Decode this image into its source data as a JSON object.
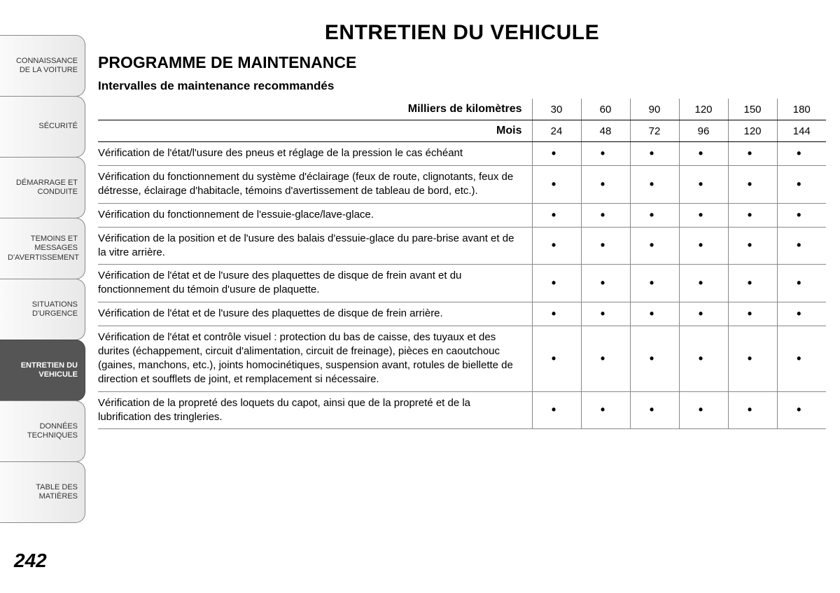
{
  "page_number": "242",
  "main_title": "ENTRETIEN DU VEHICULE",
  "sub_title": "PROGRAMME DE MAINTENANCE",
  "sub_sub_title": "Intervalles de maintenance recommandés",
  "sidebar": {
    "active_index": 5,
    "tabs": [
      "CONNAISSANCE DE LA VOITURE",
      "SÉCURITÉ",
      "DÉMARRAGE ET CONDUITE",
      "TEMOINS ET MESSAGES D'AVERTISSEMENT",
      "SITUATIONS D'URGENCE",
      "ENTRETIEN DU VEHICULE",
      "DONNÉES TECHNIQUES",
      "TABLE DES MATIÈRES"
    ]
  },
  "table": {
    "header_rows": [
      {
        "label": "Milliers de kilomètres",
        "values": [
          "30",
          "60",
          "90",
          "120",
          "150",
          "180"
        ]
      },
      {
        "label": "Mois",
        "values": [
          "24",
          "48",
          "72",
          "96",
          "120",
          "144"
        ]
      }
    ],
    "rows": [
      {
        "desc": "Vérification de l'état/l'usure des pneus et réglage de la pression le cas échéant",
        "marks": [
          true,
          true,
          true,
          true,
          true,
          true
        ]
      },
      {
        "desc": "Vérification du fonctionnement du système d'éclairage (feux de route, clignotants, feux de détresse, éclairage d'habitacle, témoins d'avertissement de tableau de bord, etc.).",
        "marks": [
          true,
          true,
          true,
          true,
          true,
          true
        ]
      },
      {
        "desc": "Vérification du fonctionnement de l'essuie-glace/lave-glace.",
        "marks": [
          true,
          true,
          true,
          true,
          true,
          true
        ]
      },
      {
        "desc": "Vérification de la position et de l'usure des balais d'essuie-glace du pare-brise avant et de la vitre arrière.",
        "marks": [
          true,
          true,
          true,
          true,
          true,
          true
        ]
      },
      {
        "desc": "Vérification de l'état et de l'usure des plaquettes de disque de frein avant et du fonctionnement du témoin d'usure de plaquette.",
        "marks": [
          true,
          true,
          true,
          true,
          true,
          true
        ]
      },
      {
        "desc": "Vérification de l'état et de l'usure des plaquettes de disque de frein arrière.",
        "marks": [
          true,
          true,
          true,
          true,
          true,
          true
        ]
      },
      {
        "desc": "Vérification de l'état et contrôle visuel : protection du bas de caisse, des tuyaux et des durites (échappement, circuit d'alimentation, circuit de freinage), pièces en caoutchouc (gaines, manchons, etc.), joints homocinétiques, suspension avant, rotules de biellette de direction et soufflets de joint, et remplacement si nécessaire.",
        "marks": [
          true,
          true,
          true,
          true,
          true,
          true
        ]
      },
      {
        "desc": "Vérification de la propreté des loquets du capot, ainsi que de la propreté et de la lubrification des tringleries.",
        "marks": [
          true,
          true,
          true,
          true,
          true,
          true
        ]
      }
    ],
    "dot_glyph": "•"
  },
  "style": {
    "colors": {
      "page_bg": "#ffffff",
      "tab_border": "#888888",
      "tab_active_bg": "#555555",
      "tab_active_text": "#ffffff",
      "tab_text": "#333333",
      "table_border": "#888888",
      "text": "#000000"
    },
    "fonts": {
      "main_title_size_pt": 22,
      "sub_title_size_pt": 17,
      "body_size_pt": 11,
      "tab_size_pt": 8
    }
  }
}
